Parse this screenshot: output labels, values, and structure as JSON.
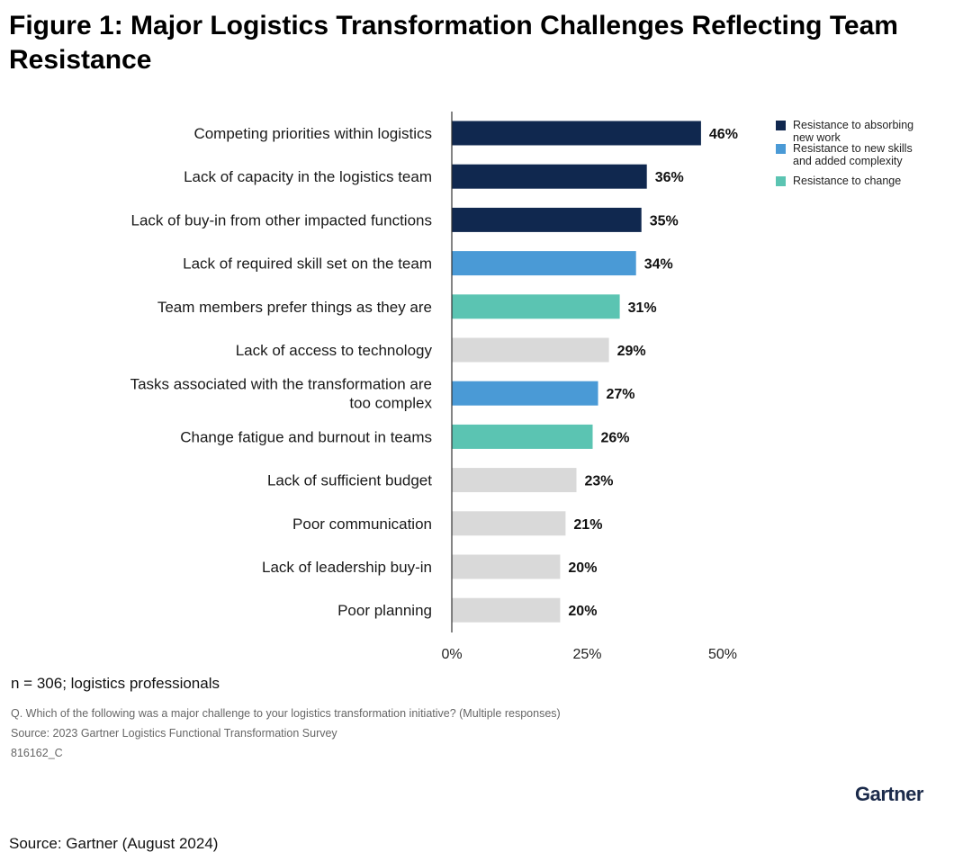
{
  "title": "Figure 1: Major Logistics Transformation Challenges Reflecting Team Resistance",
  "sample_note": "n = 306; logistics professionals",
  "question": "Q. Which of the following was a major challenge to your logistics transformation initiative? (Multiple responses)",
  "survey_source": "Source: 2023 Gartner Logistics Functional Transformation Survey",
  "figure_code": "816162_C",
  "brand": "Gartner",
  "footer_source": "Source: Gartner (August 2024)",
  "colors": {
    "absorbing": "#10284f",
    "skills": "#4a9ad6",
    "change": "#5bc4b2",
    "other": "#d9d9d9",
    "axis": "#333333"
  },
  "chart_data": {
    "type": "bar",
    "orientation": "horizontal",
    "title": "Figure 1: Major Logistics Transformation Challenges Reflecting Team Resistance",
    "xlabel": "",
    "ylabel": "",
    "xlim": [
      0,
      50
    ],
    "ticks": [
      0,
      25,
      50
    ],
    "tick_labels": [
      "0%",
      "25%",
      "50%"
    ],
    "grid": false,
    "legend_position": "top-right",
    "legend": [
      {
        "key": "absorbing",
        "label": [
          "Resistance to absorbing",
          "new work"
        ]
      },
      {
        "key": "skills",
        "label": [
          "Resistance to new skills",
          "and added complexity"
        ]
      },
      {
        "key": "change",
        "label": [
          "Resistance to change"
        ]
      }
    ],
    "categories": [
      [
        "Competing priorities within logistics"
      ],
      [
        "Lack of capacity in the logistics team"
      ],
      [
        "Lack of buy-in from other impacted functions"
      ],
      [
        "Lack of required skill set on the team"
      ],
      [
        "Team members prefer things as they are"
      ],
      [
        "Lack of access to technology"
      ],
      [
        "Tasks associated with the transformation are",
        "too complex"
      ],
      [
        "Change fatigue and burnout in teams"
      ],
      [
        "Lack of sufficient budget"
      ],
      [
        "Poor communication"
      ],
      [
        "Lack of leadership buy-in"
      ],
      [
        "Poor planning"
      ]
    ],
    "values": [
      46,
      36,
      35,
      34,
      31,
      29,
      27,
      26,
      23,
      21,
      20,
      20
    ],
    "value_labels": [
      "46%",
      "36%",
      "35%",
      "34%",
      "31%",
      "29%",
      "27%",
      "26%",
      "23%",
      "21%",
      "20%",
      "20%"
    ],
    "groups": [
      "absorbing",
      "absorbing",
      "absorbing",
      "skills",
      "change",
      "other",
      "skills",
      "change",
      "other",
      "other",
      "other",
      "other"
    ]
  }
}
